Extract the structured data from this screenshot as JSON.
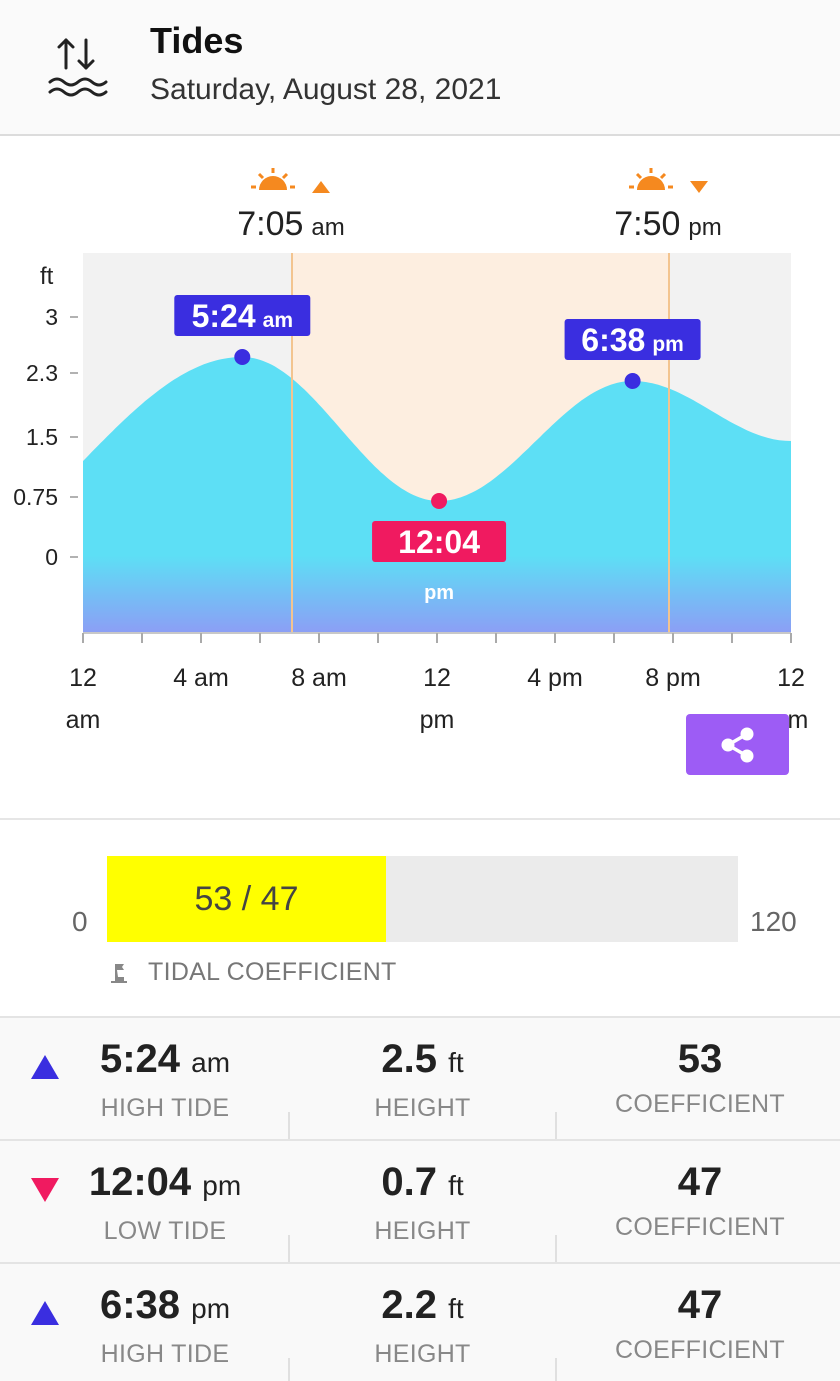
{
  "header": {
    "title": "Tides",
    "date": "Saturday, August 28, 2021",
    "icon": "tide-icon"
  },
  "chart": {
    "sunrise": {
      "time": "7:05",
      "suffix": "am",
      "icon": "sunrise-icon"
    },
    "sunset": {
      "time": "7:50",
      "suffix": "pm",
      "icon": "sunset-icon"
    },
    "y_unit": "ft",
    "y_ticks": [
      "3",
      "2.3",
      "1.5",
      "0.75",
      "0"
    ],
    "x_ticks": [
      {
        "line1": "12",
        "line2": "am"
      },
      {
        "line1": "4 am",
        "line2": ""
      },
      {
        "line1": "8 am",
        "line2": ""
      },
      {
        "line1": "12",
        "line2": "pm"
      },
      {
        "line1": "4 pm",
        "line2": ""
      },
      {
        "line1": "8 pm",
        "line2": ""
      },
      {
        "line1": "12",
        "line2": "am"
      }
    ],
    "markers": [
      {
        "time": "5:24",
        "suffix": "am",
        "type": "high"
      },
      {
        "time": "12:04",
        "suffix": "pm",
        "type": "low"
      },
      {
        "time": "6:38",
        "suffix": "pm",
        "type": "high"
      }
    ],
    "colors": {
      "water": "#5ddff5",
      "water_bottom": "#8c9ef5",
      "day": "#fdeee0",
      "night": "#f2f2f2",
      "high": "#3a2ee0",
      "low": "#f01a60",
      "sun": "#f5891f"
    }
  },
  "chart_data": {
    "type": "area",
    "title": "",
    "xlabel": "",
    "ylabel": "ft",
    "x_hours": [
      0,
      5.4,
      12.07,
      18.63,
      24
    ],
    "y_ft": [
      1.2,
      2.5,
      0.7,
      2.2,
      1.45
    ],
    "xlim_hours": [
      0,
      24
    ],
    "ylim": [
      -0.95,
      3.8
    ],
    "series": [
      {
        "values": [
          1.2,
          2.5,
          0.7,
          2.2,
          1.45
        ]
      }
    ]
  },
  "share": {
    "icon": "share-icon"
  },
  "coefficient": {
    "min": "0",
    "max": "120",
    "value_label": "53 / 47",
    "fill_value": 53,
    "max_value": 120,
    "label": "TIDAL COEFFICIENT",
    "icon": "flag-icon"
  },
  "tides": [
    {
      "type": "high",
      "time": "5:24",
      "suffix": "am",
      "tide_label": "HIGH TIDE",
      "height": "2.5",
      "height_unit": "ft",
      "height_label": "HEIGHT",
      "coefficient": "53",
      "coefficient_label": "COEFFICIENT"
    },
    {
      "type": "low",
      "time": "12:04",
      "suffix": "pm",
      "tide_label": "LOW TIDE",
      "height": "0.7",
      "height_unit": "ft",
      "height_label": "HEIGHT",
      "coefficient": "47",
      "coefficient_label": "COEFFICIENT"
    },
    {
      "type": "high",
      "time": "6:38",
      "suffix": "pm",
      "tide_label": "HIGH TIDE",
      "height": "2.2",
      "height_unit": "ft",
      "height_label": "HEIGHT",
      "coefficient": "47",
      "coefficient_label": "COEFFICIENT"
    }
  ]
}
